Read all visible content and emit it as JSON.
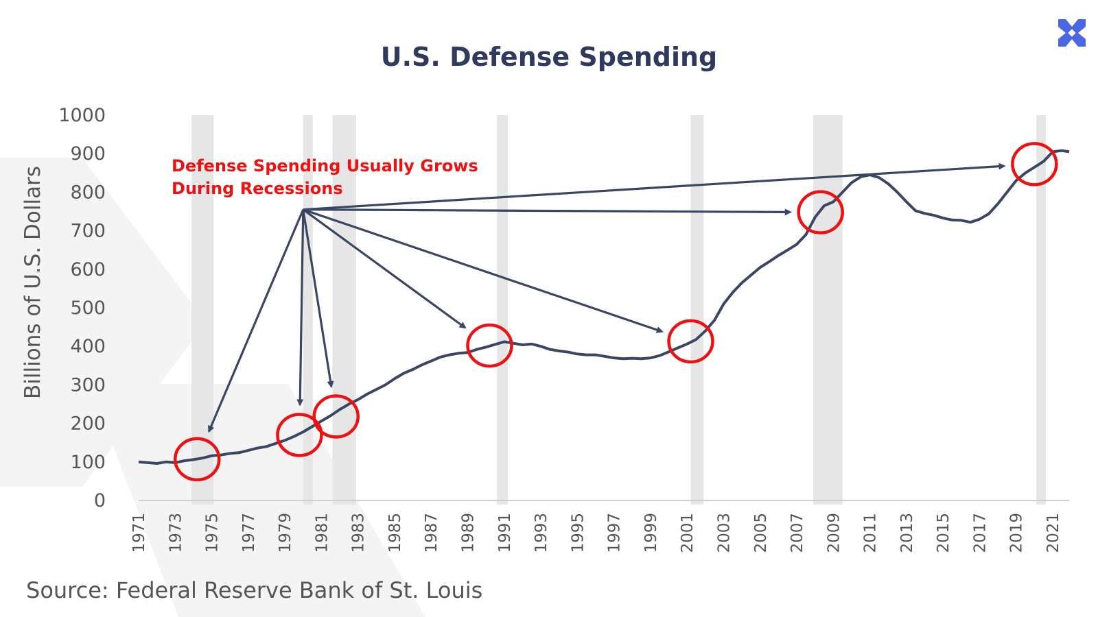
{
  "colors": {
    "line": "#3a4663",
    "recession_band": "#e6e6e6",
    "annotation": "#ee1111",
    "arrow": "#3a4663",
    "title": "#2f3a5c",
    "logo": "#4a66e0",
    "watermark": "#f3f3f3"
  },
  "logo": {
    "icon": "x-logo-icon"
  },
  "source": "Source: Federal Reserve Bank of St. Louis",
  "chart_data": {
    "type": "line",
    "title": "U.S. Defense Spending",
    "xlabel": "",
    "ylabel": "Billions of U.S. Dollars",
    "xlim": [
      1971,
      2021.9
    ],
    "ylim": [
      0,
      1000
    ],
    "y_ticks": [
      0,
      100,
      200,
      300,
      400,
      500,
      600,
      700,
      800,
      900,
      1000
    ],
    "x_ticks": [
      "1971",
      "1973",
      "1975",
      "1977",
      "1979",
      "1981",
      "1983",
      "1985",
      "1987",
      "1989",
      "1991",
      "1993",
      "1995",
      "1997",
      "1999",
      "2001",
      "2003",
      "2005",
      "2007",
      "2009",
      "2011",
      "2013",
      "2015",
      "2017",
      "2019",
      "2021"
    ],
    "grid": false,
    "legend": "none",
    "series": [
      {
        "x": [
          1971.0,
          1971.5,
          1972.0,
          1972.5,
          1973.0,
          1973.5,
          1974.0,
          1974.5,
          1975.0,
          1975.5,
          1976.0,
          1976.5,
          1977.0,
          1977.5,
          1978.0,
          1978.5,
          1979.0,
          1979.5,
          1980.0,
          1980.5,
          1981.0,
          1981.5,
          1982.0,
          1982.5,
          1983.0,
          1983.5,
          1984.0,
          1984.5,
          1985.0,
          1985.5,
          1986.0,
          1986.5,
          1987.0,
          1987.5,
          1988.0,
          1988.5,
          1989.0,
          1989.5,
          1990.0,
          1990.5,
          1991.0,
          1991.5,
          1992.0,
          1992.5,
          1993.0,
          1993.5,
          1994.0,
          1994.5,
          1995.0,
          1995.5,
          1996.0,
          1996.5,
          1997.0,
          1997.5,
          1998.0,
          1998.5,
          1999.0,
          1999.5,
          2000.0,
          2000.5,
          2001.0,
          2001.5,
          2002.0,
          2002.5,
          2003.0,
          2003.5,
          2004.0,
          2004.5,
          2005.0,
          2005.5,
          2006.0,
          2006.5,
          2007.0,
          2007.5,
          2008.0,
          2008.5,
          2009.0,
          2009.5,
          2010.0,
          2010.5,
          2011.0,
          2011.5,
          2012.0,
          2012.5,
          2013.0,
          2013.5,
          2014.0,
          2014.5,
          2015.0,
          2015.5,
          2016.0,
          2016.5,
          2017.0,
          2017.5,
          2018.0,
          2018.5,
          2019.0,
          2019.5,
          2020.0,
          2020.5,
          2021.0,
          2021.5,
          2021.9
        ],
        "values": [
          100,
          98,
          96,
          100,
          98,
          103,
          106,
          110,
          116,
          118,
          122,
          124,
          130,
          136,
          140,
          148,
          156,
          166,
          178,
          192,
          206,
          220,
          236,
          250,
          262,
          276,
          288,
          300,
          316,
          330,
          340,
          352,
          362,
          372,
          378,
          382,
          384,
          392,
          398,
          405,
          412,
          408,
          404,
          406,
          400,
          392,
          388,
          385,
          380,
          378,
          378,
          374,
          370,
          368,
          369,
          368,
          370,
          376,
          386,
          396,
          406,
          418,
          440,
          468,
          510,
          540,
          565,
          585,
          605,
          620,
          636,
          650,
          665,
          690,
          735,
          765,
          775,
          800,
          825,
          840,
          845,
          838,
          822,
          800,
          775,
          752,
          745,
          740,
          733,
          728,
          727,
          722,
          730,
          744,
          770,
          800,
          830,
          850,
          865,
          880,
          905,
          908,
          905
        ]
      }
    ],
    "recessions": [
      [
        1973.9,
        1975.1
      ],
      [
        1980.0,
        1980.5
      ],
      [
        1981.6,
        1982.9
      ],
      [
        1990.6,
        1991.2
      ],
      [
        2001.2,
        2001.9
      ],
      [
        2007.9,
        2009.5
      ],
      [
        2020.1,
        2020.4
      ]
    ],
    "annotation": {
      "lines": [
        "Defense Spending Usually Grows",
        "During Recessions"
      ]
    },
    "circled_points": [
      {
        "x": 1974.2,
        "y": 107
      },
      {
        "x": 1979.8,
        "y": 170
      },
      {
        "x": 1981.8,
        "y": 218
      },
      {
        "x": 1990.2,
        "y": 402
      },
      {
        "x": 2001.2,
        "y": 413
      },
      {
        "x": 2008.3,
        "y": 748
      },
      {
        "x": 2020.0,
        "y": 873
      }
    ]
  }
}
